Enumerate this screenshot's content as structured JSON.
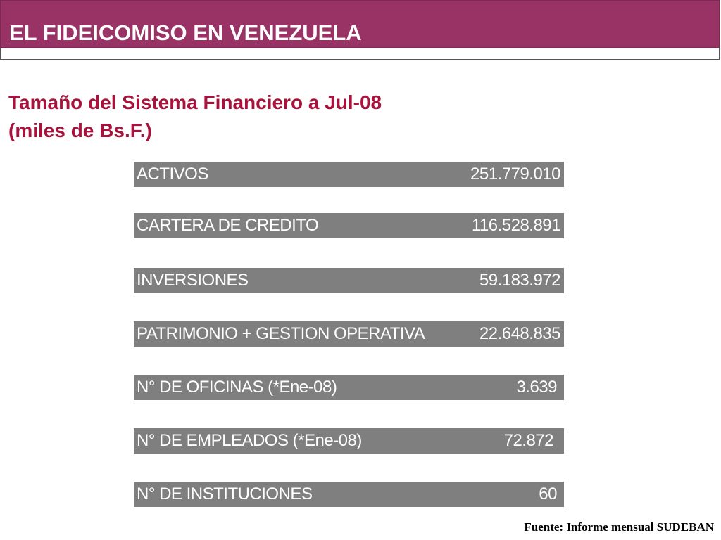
{
  "header": {
    "title": "EL FIDEICOMISO EN VENEZUELA",
    "background_color": "#993366"
  },
  "subtitle": {
    "line1": "Tamaño del Sistema Financiero a Jul-08",
    "line2": "(miles de Bs.F.)",
    "color": "#a8123c"
  },
  "stats": [
    {
      "label": "ACTIVOS",
      "value": "251.779.010"
    },
    {
      "label": "CARTERA DE CREDITO",
      "value": "116.528.891"
    },
    {
      "label": "INVERSIONES",
      "value": "59.183.972"
    },
    {
      "label": "PATRIMONIO + GESTION OPERATIVA",
      "value": "22.648.835"
    },
    {
      "label": "N° DE OFICINAS (*Ene-08)",
      "value": "3.639"
    },
    {
      "label": "N° DE EMPLEADOS (*Ene-08)",
      "value": "72.872"
    },
    {
      "label": "N° DE INSTITUCIONES",
      "value": "60"
    }
  ],
  "row_color": "#7f7f7f",
  "source": "Fuente: Informe mensual SUDEBAN"
}
